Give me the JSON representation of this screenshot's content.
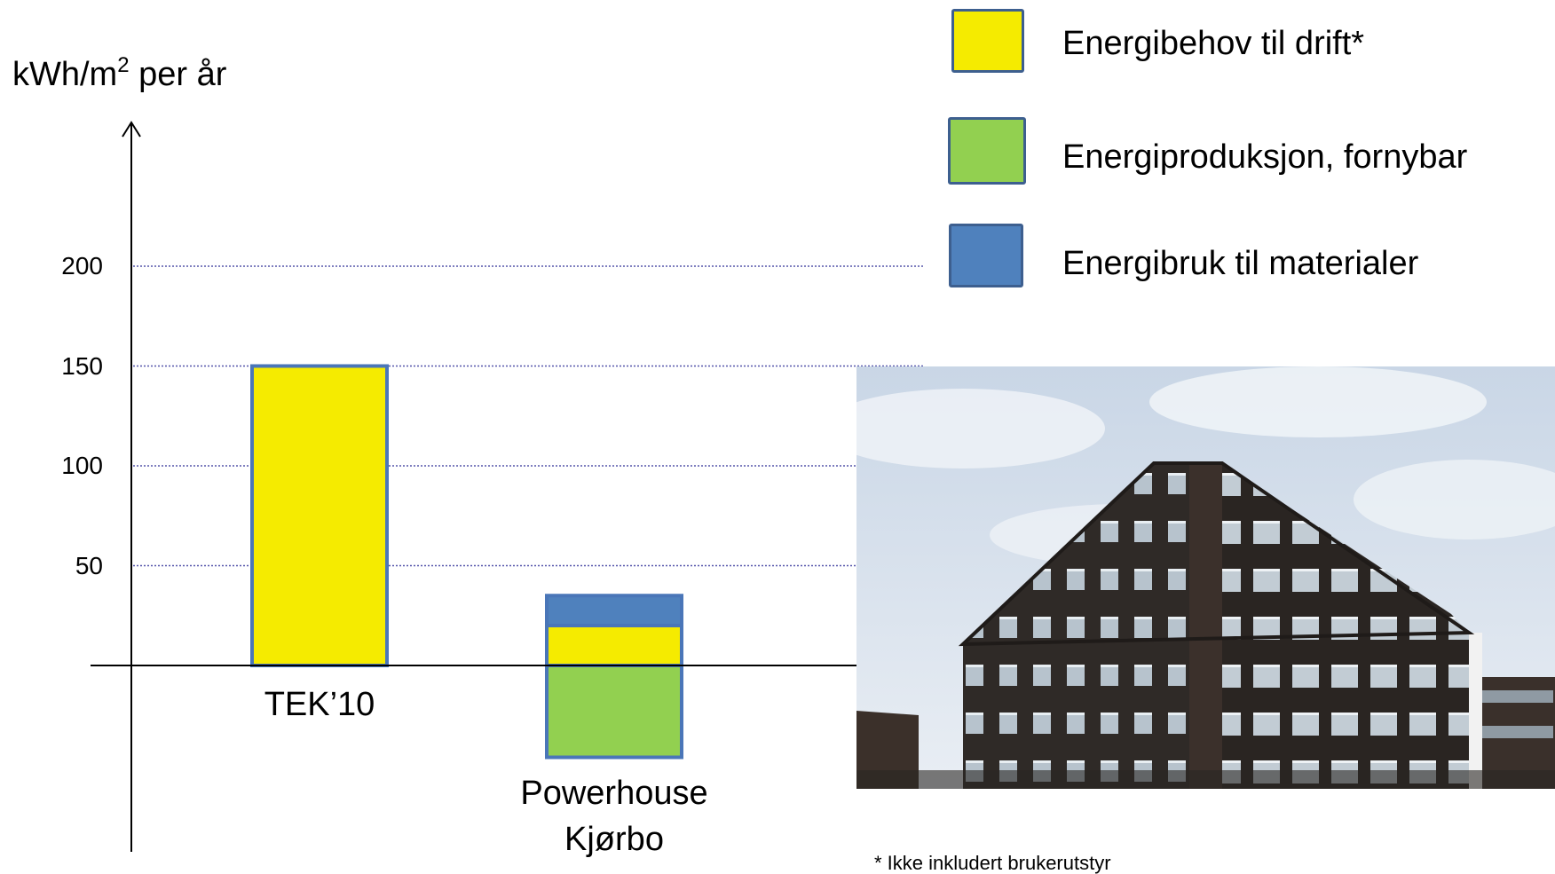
{
  "chart_data": {
    "type": "bar",
    "stacked": true,
    "ylabel_prefix": "kWh/m",
    "ylabel_sup": "2",
    "ylabel_suffix": " per år",
    "yticks": [
      50,
      100,
      150,
      200
    ],
    "ylim": [
      -50,
      250
    ],
    "grid": "dotted horizontal lines at 50, 100, 150, 200",
    "categories": [
      "TEK’10",
      "Powerhouse Kjørbo"
    ],
    "category_lines": [
      [
        "TEK’10"
      ],
      [
        "Powerhouse",
        "Kjørbo"
      ]
    ],
    "series": [
      {
        "name": "Energibehov til drift*",
        "color": "#f5eb00",
        "values": [
          150,
          20
        ]
      },
      {
        "name": "Energiproduksjon, fornybar",
        "color": "#92d050",
        "values": [
          0,
          -46
        ]
      },
      {
        "name": "Energibruk til materialer",
        "color": "#4f81bd",
        "values": [
          0,
          15
        ]
      }
    ],
    "legend_position": "top-right"
  },
  "footnote": "* Ikke inkludert brukerutstyr",
  "photo": {
    "subject": "dark timber-clad office building"
  }
}
